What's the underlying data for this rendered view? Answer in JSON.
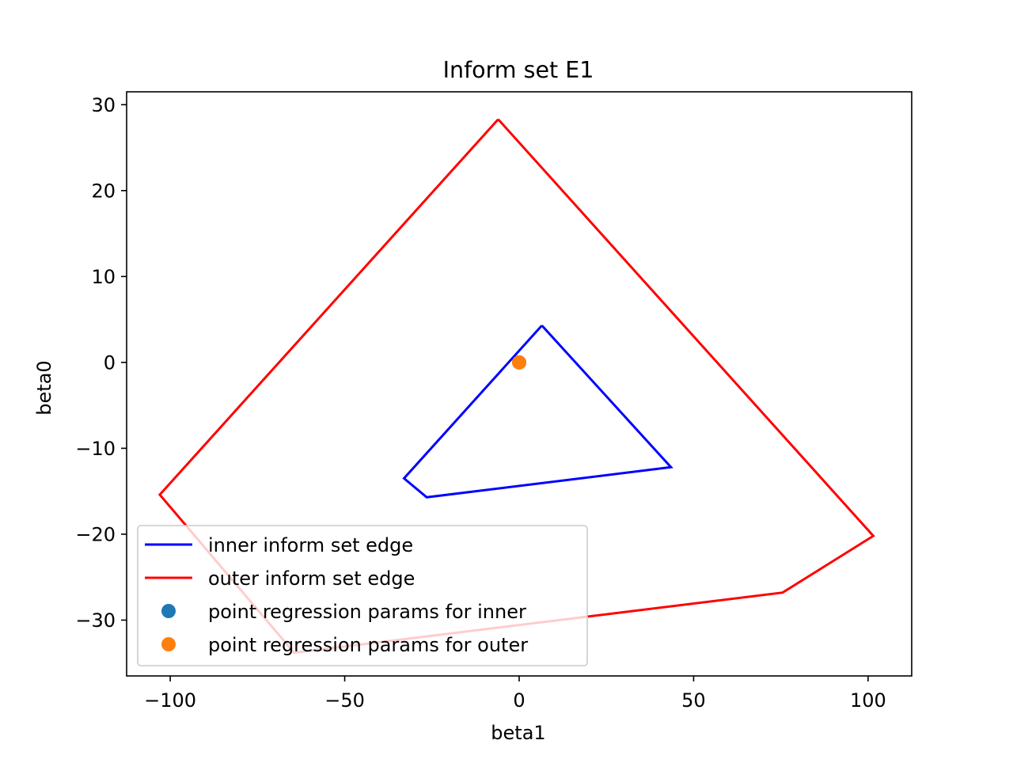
{
  "chart_data": {
    "type": "line",
    "title": "Inform set E1",
    "xlabel": "beta1",
    "ylabel": "beta0",
    "xlim": [
      -112.5,
      112.5
    ],
    "ylim": [
      -36.5,
      31.5
    ],
    "xticks": [
      -100,
      -50,
      0,
      50,
      100
    ],
    "xtick_labels": [
      "−100",
      "−50",
      "0",
      "50",
      "100"
    ],
    "yticks": [
      -30,
      -20,
      -10,
      0,
      10,
      20,
      30
    ],
    "ytick_labels": [
      "−30",
      "−20",
      "−10",
      "0",
      "10",
      "20",
      "30"
    ],
    "grid": false,
    "legend_position": "lower left",
    "series": [
      {
        "name": "inner inform set edge",
        "kind": "line",
        "color": "#0000ff",
        "points": [
          {
            "x": 6.5,
            "y": 4.3
          },
          {
            "x": 43.5,
            "y": -12.2
          },
          {
            "x": -26.5,
            "y": -15.7
          },
          {
            "x": -33.0,
            "y": -13.5
          },
          {
            "x": 6.5,
            "y": 4.3
          }
        ]
      },
      {
        "name": "outer inform set edge",
        "kind": "line",
        "color": "#ff0000",
        "points": [
          {
            "x": -6.0,
            "y": 28.3
          },
          {
            "x": 101.5,
            "y": -20.2
          },
          {
            "x": 75.5,
            "y": -26.8
          },
          {
            "x": -64.5,
            "y": -33.8
          },
          {
            "x": -103.0,
            "y": -15.4
          },
          {
            "x": -6.0,
            "y": 28.3
          }
        ]
      },
      {
        "name": "point regression params for inner",
        "kind": "scatter",
        "color": "#1f77b4",
        "points": [
          {
            "x": 0,
            "y": 0
          }
        ]
      },
      {
        "name": "point regression params for outer",
        "kind": "scatter",
        "color": "#ff7f0e",
        "points": [
          {
            "x": 0,
            "y": 0
          }
        ]
      }
    ]
  }
}
